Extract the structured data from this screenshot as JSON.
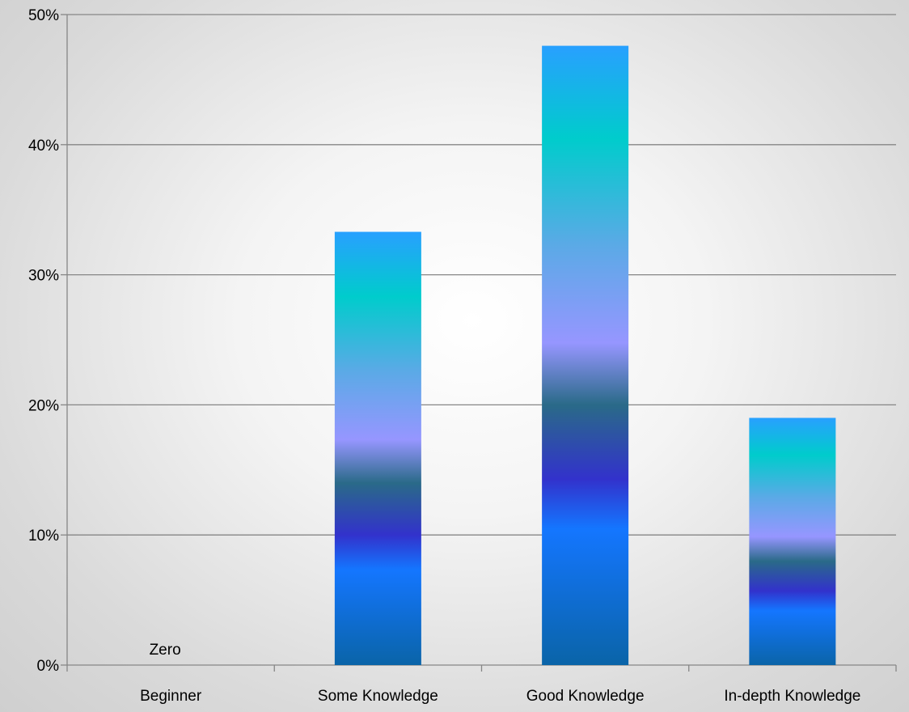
{
  "chart_data": {
    "type": "bar",
    "categories": [
      "Beginner",
      "Some Knowledge",
      "Good Knowledge",
      "In-depth Knowledge"
    ],
    "values": [
      0,
      33.3,
      47.6,
      19.0
    ],
    "y_ticks": [
      "0%",
      "10%",
      "20%",
      "30%",
      "40%",
      "50%"
    ],
    "ylim": [
      0,
      50
    ],
    "y_unit": "%",
    "annotations": [
      {
        "category": "Beginner",
        "text": "Zero"
      }
    ],
    "grid": true,
    "legend": "none",
    "bar_gradient": [
      "#0a64a8",
      "#1476ff",
      "#3232cc",
      "#2a6a88",
      "#9696ff",
      "#5aaae6",
      "#00cccc",
      "#28a0ff"
    ]
  }
}
